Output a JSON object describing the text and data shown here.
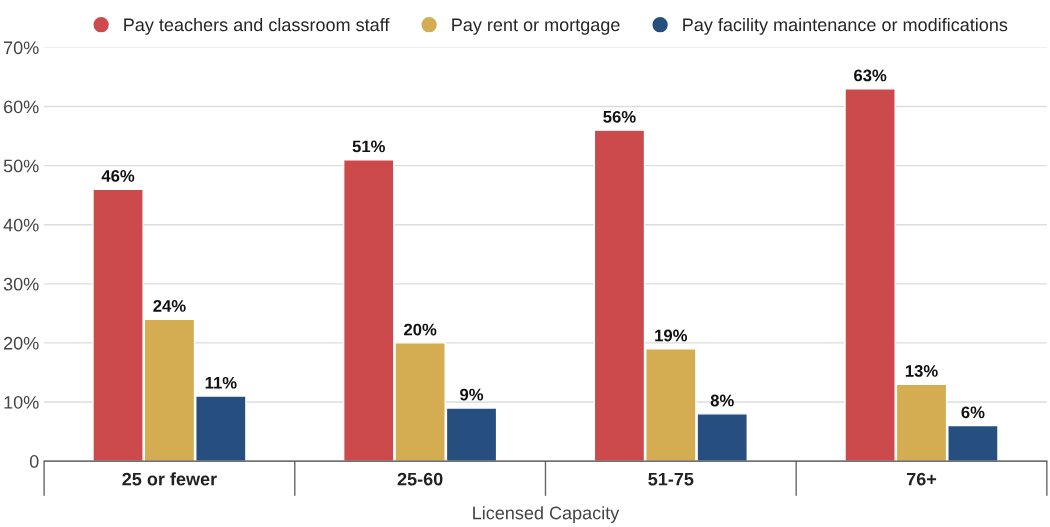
{
  "chart_data": {
    "type": "bar",
    "xlabel": "Licensed Capacity",
    "categories": [
      "25 or fewer",
      "25-60",
      "51-75",
      "76+"
    ],
    "series": [
      {
        "name": "Pay teachers and classroom staff",
        "color": "#cc4a4c",
        "values": [
          46,
          51,
          56,
          63
        ],
        "value_labels": [
          "46%",
          "51%",
          "56%",
          "63%"
        ]
      },
      {
        "name": "Pay rent or mortgage",
        "color": "#d4ac52",
        "values": [
          24,
          20,
          19,
          13
        ],
        "value_labels": [
          "24%",
          "20%",
          "19%",
          "13%"
        ]
      },
      {
        "name": "Pay facility maintenance or modifications",
        "color": "#264f80",
        "values": [
          11,
          9,
          8,
          6
        ],
        "value_labels": [
          "11%",
          "9%",
          "8%",
          "6%"
        ]
      }
    ],
    "ylim": [
      0,
      70
    ],
    "yticks": [
      0,
      {
        "value": 10,
        "label": "10%"
      },
      {
        "value": 20,
        "label": "20%"
      },
      {
        "value": 30,
        "label": "30%"
      },
      {
        "value": 40,
        "label": "40%"
      },
      {
        "value": 50,
        "label": "50%"
      },
      {
        "value": 60,
        "label": "60%"
      },
      {
        "value": 70,
        "label": "70%"
      }
    ],
    "grid": "y",
    "legend": "top"
  }
}
